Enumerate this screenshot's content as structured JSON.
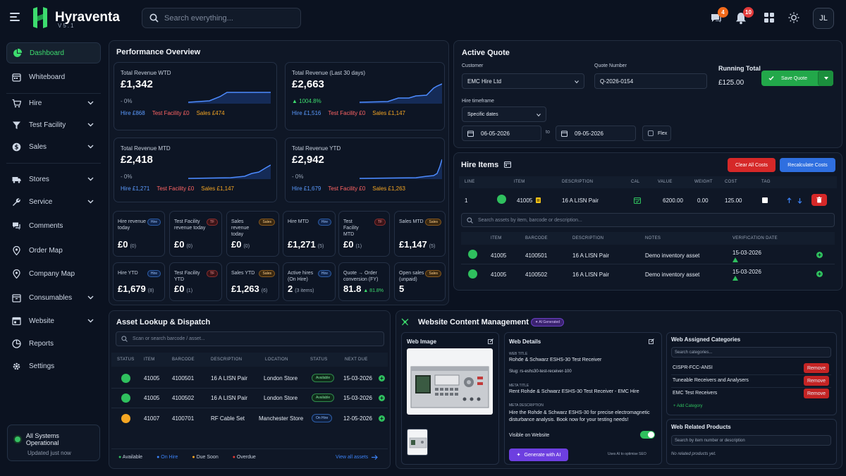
{
  "app": {
    "name": "Hyraventa",
    "version": "V5.1"
  },
  "search": {
    "placeholder": "Search everything..."
  },
  "topbar": {
    "chat_badge": "4",
    "notif_badge": "10",
    "avatar": "JL"
  },
  "sidebar": {
    "items": [
      {
        "label": "Dashboard",
        "icon": "pie-chart-icon",
        "active": true
      },
      {
        "label": "Whiteboard",
        "icon": "calendar-icon"
      },
      {
        "label": "Hire",
        "icon": "cart-icon",
        "expandable": true
      },
      {
        "label": "Test Facility",
        "icon": "funnel-icon",
        "expandable": true
      },
      {
        "label": "Sales",
        "icon": "dollar-icon",
        "expandable": true
      },
      {
        "label": "Stores",
        "icon": "truck-icon",
        "expandable": true
      },
      {
        "label": "Service",
        "icon": "wrench-icon",
        "expandable": true
      },
      {
        "label": "Comments",
        "icon": "comments-icon"
      },
      {
        "label": "Order Map",
        "icon": "map-pin-icon"
      },
      {
        "label": "Company Map",
        "icon": "map-pin-icon"
      },
      {
        "label": "Consumables",
        "icon": "box-icon",
        "expandable": true
      },
      {
        "label": "Website",
        "icon": "window-icon",
        "expandable": true
      },
      {
        "label": "Reports",
        "icon": "report-icon"
      },
      {
        "label": "Settings",
        "icon": "gear-icon"
      }
    ],
    "status": {
      "title": "All Systems Operational",
      "subtitle": "Updated just now"
    }
  },
  "performance": {
    "title": "Performance Overview",
    "kpis": [
      {
        "label": "Total Revenue WTD",
        "value": "£1,342",
        "change": "- 0%",
        "hire": "Hire £868",
        "tf": "Test Facility £0",
        "sales": "Sales £474"
      },
      {
        "label": "Total Revenue (Last 30 days)",
        "value": "£2,663",
        "change": "▲ 1004.8%",
        "hire": "Hire £1,516",
        "tf": "Test Facility £0",
        "sales": "Sales £1,147"
      },
      {
        "label": "Total Revenue MTD",
        "value": "£2,418",
        "change": "- 0%",
        "hire": "Hire £1,271",
        "tf": "Test Facility £0",
        "sales": "Sales £1,147"
      },
      {
        "label": "Total Revenue YTD",
        "value": "£2,942",
        "change": "- 0%",
        "hire": "Hire £1,679",
        "tf": "Test Facility £0",
        "sales": "Sales £1,263"
      }
    ],
    "minis": [
      {
        "label": "Hire revenue today",
        "value": "£0",
        "sub": "(0)",
        "tag": "Hire"
      },
      {
        "label": "Test Facility revenue today",
        "value": "£0",
        "sub": "(0)",
        "tag": "TF"
      },
      {
        "label": "Sales revenue today",
        "value": "£0",
        "sub": "(0)",
        "tag": "Sales"
      },
      {
        "label": "Hire MTD",
        "value": "£1,271",
        "sub": "(5)",
        "tag": "Hire"
      },
      {
        "label": "Test Facility MTD",
        "value": "£0",
        "sub": "(1)",
        "tag": "TF"
      },
      {
        "label": "Sales MTD",
        "value": "£1,147",
        "sub": "(5)",
        "tag": "Sales"
      },
      {
        "label": "Hire YTD",
        "value": "£1,679",
        "sub": "(8)",
        "tag": "Hire"
      },
      {
        "label": "Test Facility YTD",
        "value": "£0",
        "sub": "(1)",
        "tag": "TF"
      },
      {
        "label": "Sales YTD",
        "value": "£1,263",
        "sub": "(6)",
        "tag": "Sales"
      },
      {
        "label": "Active hires (On Hire)",
        "value": "2",
        "sub": "(3 items)",
        "tag": "Hire"
      },
      {
        "label": "Quote → Order conversion (FY)",
        "value": "81.8",
        "sub": "▲ 81.8%",
        "tag": ""
      },
      {
        "label": "Open sales (unpaid)",
        "value": "5",
        "sub": "",
        "tag": "Sales"
      }
    ]
  },
  "quote": {
    "title": "Active Quote",
    "customer_label": "Customer",
    "customer": "EMC Hire Ltd",
    "number_label": "Quote Number",
    "number": "Q-2026-0154",
    "running_label": "Running Total",
    "running": "£125.00",
    "save": "Save Quote",
    "timeframe_label": "Hire timeframe",
    "timeframe": "Specific dates",
    "from": "06-05-2026",
    "to_label": "to",
    "to": "09-05-2026",
    "flex": "Flex"
  },
  "hire_items": {
    "title": "Hire Items",
    "clear": "Clear All Costs",
    "recalc": "Recalculate Costs",
    "headers": [
      "LINE",
      "ITEM",
      "DESCRIPTION",
      "CAL",
      "VALUE",
      "WEIGHT",
      "COST",
      "TAG"
    ],
    "row": {
      "line": "1",
      "item": "41005",
      "description": "16 A LISN Pair",
      "value": "6200.00",
      "weight": "0.00",
      "cost": "125.00"
    },
    "search_placeholder": "Search assets by item, barcode or description...",
    "asset_headers": [
      "ITEM",
      "BARCODE",
      "DESCRIPTION",
      "NOTES",
      "VERIFICATION DATE"
    ],
    "assets": [
      {
        "item": "41005",
        "barcode": "4100501",
        "description": "16 A LISN Pair",
        "notes": "Demo inventory asset",
        "date": "15-03-2026"
      },
      {
        "item": "41005",
        "barcode": "4100502",
        "description": "16 A LISN Pair",
        "notes": "Demo inventory asset",
        "date": "15-03-2026"
      }
    ]
  },
  "asset_lookup": {
    "title": "Asset Lookup & Dispatch",
    "placeholder": "Scan or search barcode / asset...",
    "headers": [
      "STATUS",
      "ITEM",
      "BARCODE",
      "DESCRIPTION",
      "LOCATION",
      "STATUS",
      "NEXT DUE"
    ],
    "rows": [
      {
        "color": "#2fc05e",
        "item": "41005",
        "barcode": "4100501",
        "description": "16 A LISN Pair",
        "location": "London Store",
        "status": "Available",
        "due": "15-03-2026"
      },
      {
        "color": "#2fc05e",
        "item": "41005",
        "barcode": "4100502",
        "description": "16 A LISN Pair",
        "location": "London Store",
        "status": "Available",
        "due": "15-03-2026"
      },
      {
        "color": "#f5a623",
        "item": "41007",
        "barcode": "4100701",
        "description": "RF Cable Set",
        "location": "Manchester Store",
        "status": "On Hire",
        "due": "12-05-2026"
      }
    ],
    "legend": [
      "Available",
      "On Hire",
      "Due Soon",
      "Overdue"
    ],
    "legend_colors": [
      "#2fc05e",
      "#3b82f6",
      "#f5a623",
      "#e53935"
    ],
    "view_all": "View all assets"
  },
  "website": {
    "title": "Website Content Management",
    "ai_badge": "AI Generated",
    "image_title": "Web Image",
    "details_title": "Web Details",
    "web_title_label": "WEB TITLE",
    "web_title": "Rohde & Schwarz ESHS-30 Test Receiver",
    "slug": "Slug: rs-eshs30-test-receiver-100",
    "meta_title_label": "META TITLE",
    "meta_title": "Rent Rohde & Schwarz ESHS-30 Test Receiver - EMC Hire",
    "meta_desc_label": "META DESCRIPTION",
    "meta_desc": "Hire the Rohde & Schwarz ESHS-30 for precise electromagnetic disturbance analysis. Book now for your testing needs!",
    "visible": "Visible on Website",
    "generate": "Generate with AI",
    "seo_note": "Uses AI to optimise SEO",
    "cats_title": "Web Assigned Categories",
    "cats_placeholder": "Search categories...",
    "cats": [
      "CISPR-FCC-ANSI",
      "Tuneable Receivers and Analysers",
      "EMC Test Receivers"
    ],
    "remove": "Remove",
    "add_cat": "+ Add Category",
    "related_title": "Web Related Products",
    "related_placeholder": "Search by item number or description",
    "related_empty": "No related products yet."
  }
}
